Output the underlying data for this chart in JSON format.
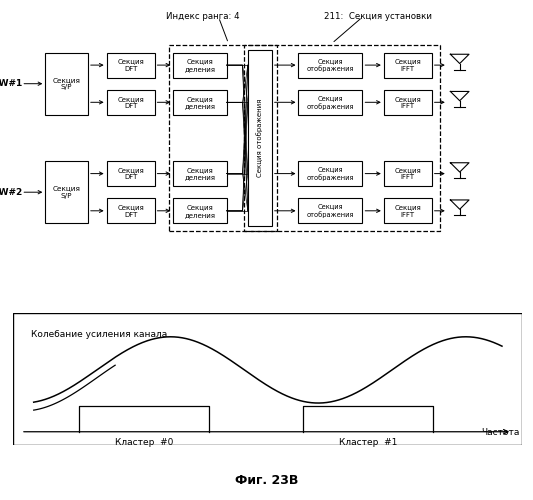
{
  "title": "Фиг. 23В",
  "bg_color": "#ffffff",
  "block_edge_color": "#000000",
  "block_face_color": "#ffffff",
  "text_color": "#000000",
  "label_index_rank": "Индекс ранга: 4",
  "label_211": "211:  Секция установки",
  "label_channel": "Колебание усиления канала",
  "label_cluster0": "Кластер  #0",
  "label_cluster1": "Кластер  #1",
  "label_freq": "Частота"
}
